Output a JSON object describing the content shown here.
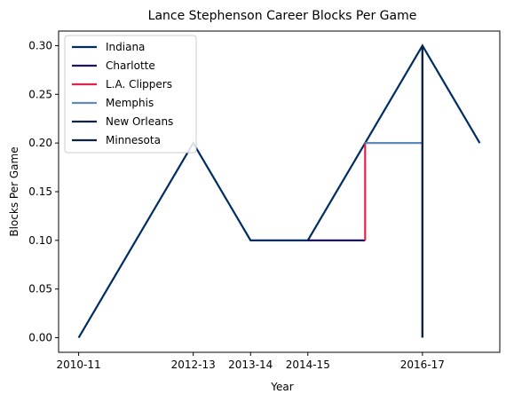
{
  "chart_data": {
    "type": "line",
    "title": "Lance Stephenson Career Blocks Per Game",
    "xlabel": "Year",
    "ylabel": "Blocks Per Game",
    "x_tick_labels": [
      "2010-11",
      "2012-13",
      "2013-14",
      "2014-15",
      "2016-17"
    ],
    "x_tick_positions": [
      0,
      2,
      3,
      4,
      6
    ],
    "xlim": [
      -0.35,
      7.35
    ],
    "ylim": [
      -0.015,
      0.315
    ],
    "y_ticks": [
      "0.00",
      "0.05",
      "0.10",
      "0.15",
      "0.20",
      "0.25",
      "0.30"
    ],
    "y_tick_values": [
      0.0,
      0.05,
      0.1,
      0.15,
      0.2,
      0.25,
      0.3
    ],
    "grid": false,
    "legend_position": "top-left",
    "series": [
      {
        "name": "Indiana",
        "color": "#002D62",
        "points": [
          [
            0,
            0.0
          ],
          [
            1,
            0.1
          ],
          [
            2,
            0.2
          ],
          [
            3,
            0.1
          ],
          [
            4,
            0.1
          ],
          [
            6,
            0.3
          ],
          [
            7,
            0.2
          ]
        ]
      },
      {
        "name": "Charlotte",
        "color": "#1D1160",
        "points": [
          [
            4,
            0.1
          ],
          [
            5,
            0.1
          ]
        ]
      },
      {
        "name": "L.A. Clippers",
        "color": "#E0234E",
        "points": [
          [
            5,
            0.1
          ],
          [
            5,
            0.2
          ]
        ]
      },
      {
        "name": "Memphis",
        "color": "#6189B9",
        "points": [
          [
            5,
            0.2
          ],
          [
            6,
            0.2
          ]
        ]
      },
      {
        "name": "New Orleans",
        "color": "#0C2340",
        "points": [
          [
            6,
            0.0
          ],
          [
            6,
            0.3
          ]
        ]
      },
      {
        "name": "Minnesota",
        "color": "#0C2340",
        "points": [
          [
            6,
            0.0
          ],
          [
            6,
            0.3
          ]
        ]
      }
    ]
  }
}
